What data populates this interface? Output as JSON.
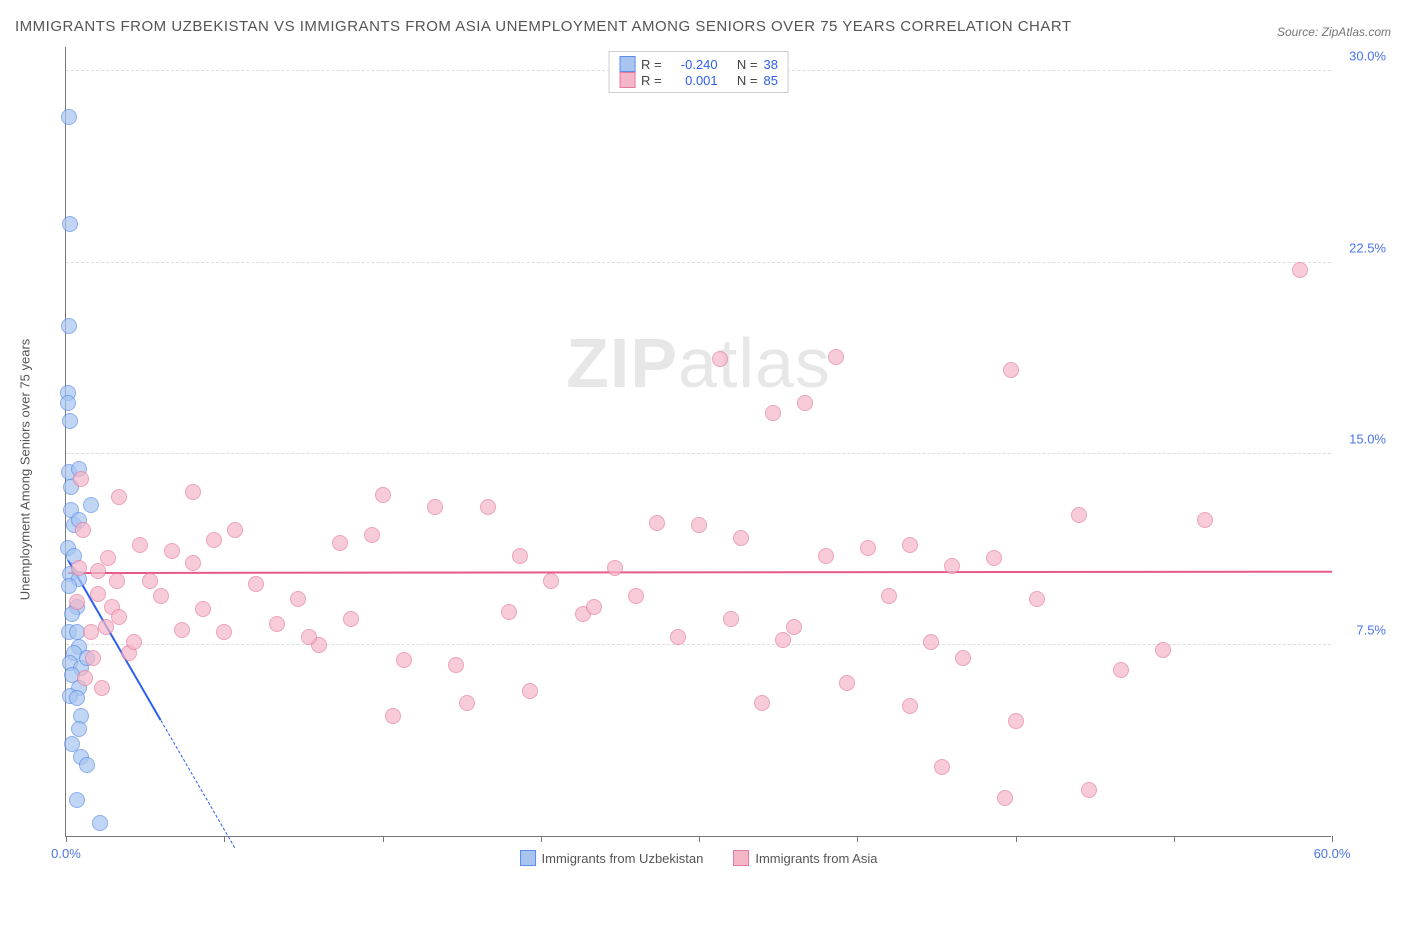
{
  "title": "IMMIGRANTS FROM UZBEKISTAN VS IMMIGRANTS FROM ASIA UNEMPLOYMENT AMONG SENIORS OVER 75 YEARS CORRELATION CHART",
  "source_label": "Source:",
  "source_value": "ZipAtlas.com",
  "ylabel": "Unemployment Among Seniors over 75 years",
  "watermark_bold": "ZIP",
  "watermark_light": "atlas",
  "chart": {
    "type": "scatter",
    "xlim": [
      0,
      60
    ],
    "ylim": [
      0,
      31
    ],
    "xtick_positions": [
      0,
      7.5,
      15,
      22.5,
      30,
      37.5,
      45,
      52.5,
      60
    ],
    "xtick_labels": {
      "0": "0.0%",
      "60": "60.0%"
    },
    "ytick_positions": [
      7.5,
      15,
      22.5,
      30
    ],
    "ytick_labels": {
      "7.5": "7.5%",
      "15": "15.0%",
      "22.5": "22.5%",
      "30": "30.0%"
    },
    "grid_color": "#dddddd",
    "axis_color": "#777777",
    "background_color": "#ffffff",
    "series": [
      {
        "name": "Immigrants from Uzbekistan",
        "key": "uzbekistan",
        "fill": "#a8c5f0",
        "fill_opacity": 0.35,
        "stroke": "#5b8de8",
        "trend_color": "#2b5ff0",
        "trend_start": [
          0.1,
          10.8
        ],
        "trend_end_solid": [
          4.5,
          4.5
        ],
        "trend_end_dash": [
          8.0,
          -0.5
        ],
        "R": "-0.240",
        "N": "38",
        "radius": 7,
        "points": [
          [
            0.15,
            28.2
          ],
          [
            0.2,
            24.0
          ],
          [
            0.15,
            20.0
          ],
          [
            0.1,
            17.4
          ],
          [
            0.1,
            17.0
          ],
          [
            0.2,
            16.3
          ],
          [
            0.12,
            14.3
          ],
          [
            0.6,
            14.4
          ],
          [
            0.25,
            12.8
          ],
          [
            1.2,
            13.0
          ],
          [
            0.4,
            12.2
          ],
          [
            0.6,
            12.4
          ],
          [
            0.1,
            11.3
          ],
          [
            0.4,
            11.0
          ],
          [
            0.2,
            10.3
          ],
          [
            0.6,
            10.1
          ],
          [
            0.15,
            9.8
          ],
          [
            0.5,
            9.0
          ],
          [
            0.3,
            8.7
          ],
          [
            0.15,
            8.0
          ],
          [
            0.5,
            8.0
          ],
          [
            0.6,
            7.4
          ],
          [
            0.4,
            7.2
          ],
          [
            0.2,
            6.8
          ],
          [
            0.7,
            6.6
          ],
          [
            0.3,
            6.3
          ],
          [
            0.6,
            5.8
          ],
          [
            0.2,
            5.5
          ],
          [
            0.5,
            5.4
          ],
          [
            0.7,
            4.7
          ],
          [
            0.6,
            4.2
          ],
          [
            0.3,
            3.6
          ],
          [
            0.7,
            3.1
          ],
          [
            1.0,
            2.8
          ],
          [
            0.5,
            1.4
          ],
          [
            1.6,
            0.5
          ],
          [
            0.25,
            13.7
          ],
          [
            1.0,
            7.0
          ]
        ]
      },
      {
        "name": "Immigrants from Asia",
        "key": "asia",
        "fill": "#f5b7c8",
        "fill_opacity": 0.35,
        "stroke": "#e77aa0",
        "trend_color": "#e55a8a",
        "trend_start": [
          0.1,
          10.3
        ],
        "trend_end_solid": [
          60,
          10.35
        ],
        "R": "0.001",
        "N": "85",
        "radius": 7,
        "points": [
          [
            58.5,
            22.2
          ],
          [
            31,
            18.7
          ],
          [
            36.5,
            18.8
          ],
          [
            44.8,
            18.3
          ],
          [
            35,
            17.0
          ],
          [
            33.5,
            16.6
          ],
          [
            6,
            13.5
          ],
          [
            2.5,
            13.3
          ],
          [
            15,
            13.4
          ],
          [
            17.5,
            12.9
          ],
          [
            20,
            12.9
          ],
          [
            48,
            12.6
          ],
          [
            54,
            12.4
          ],
          [
            28,
            12.3
          ],
          [
            30,
            12.2
          ],
          [
            8,
            12.0
          ],
          [
            3.5,
            11.4
          ],
          [
            32,
            11.7
          ],
          [
            13,
            11.5
          ],
          [
            40,
            11.4
          ],
          [
            36,
            11.0
          ],
          [
            44,
            10.9
          ],
          [
            2,
            10.9
          ],
          [
            6,
            10.7
          ],
          [
            26,
            10.5
          ],
          [
            23,
            10.0
          ],
          [
            4,
            10.0
          ],
          [
            9,
            9.9
          ],
          [
            1.5,
            9.5
          ],
          [
            4.5,
            9.4
          ],
          [
            11,
            9.3
          ],
          [
            27,
            9.4
          ],
          [
            39,
            9.4
          ],
          [
            46,
            9.3
          ],
          [
            2.2,
            9.0
          ],
          [
            6.5,
            8.9
          ],
          [
            21,
            8.8
          ],
          [
            24.5,
            8.7
          ],
          [
            13.5,
            8.5
          ],
          [
            10,
            8.3
          ],
          [
            5.5,
            8.1
          ],
          [
            7.5,
            8.0
          ],
          [
            1.2,
            8.0
          ],
          [
            29,
            7.8
          ],
          [
            34,
            7.7
          ],
          [
            41,
            7.6
          ],
          [
            52,
            7.3
          ],
          [
            12,
            7.5
          ],
          [
            3,
            7.2
          ],
          [
            42.5,
            7.0
          ],
          [
            16,
            6.9
          ],
          [
            18.5,
            6.7
          ],
          [
            50,
            6.5
          ],
          [
            37,
            6.0
          ],
          [
            22,
            5.7
          ],
          [
            33,
            5.2
          ],
          [
            19,
            5.2
          ],
          [
            40,
            5.1
          ],
          [
            45,
            4.5
          ],
          [
            15.5,
            4.7
          ],
          [
            41.5,
            2.7
          ],
          [
            44.5,
            1.5
          ],
          [
            48.5,
            1.8
          ],
          [
            0.8,
            12.0
          ],
          [
            1.5,
            10.4
          ],
          [
            2.4,
            10.0
          ],
          [
            2.5,
            8.6
          ],
          [
            1.9,
            8.2
          ],
          [
            3.2,
            7.6
          ],
          [
            1.3,
            7.0
          ],
          [
            0.9,
            6.2
          ],
          [
            1.7,
            5.8
          ],
          [
            34.5,
            8.2
          ],
          [
            0.7,
            14.0
          ],
          [
            14.5,
            11.8
          ],
          [
            25,
            9.0
          ],
          [
            11.5,
            7.8
          ],
          [
            5,
            11.2
          ],
          [
            38,
            11.3
          ],
          [
            42,
            10.6
          ],
          [
            21.5,
            11.0
          ],
          [
            7,
            11.6
          ],
          [
            31.5,
            8.5
          ],
          [
            0.5,
            9.2
          ],
          [
            0.6,
            10.5
          ]
        ]
      }
    ]
  },
  "legend_top": {
    "rows": [
      {
        "swatch_fill": "#a8c5f0",
        "swatch_stroke": "#5b8de8",
        "R_label": "R =",
        "R": "-0.240",
        "N_label": "N =",
        "N": "38"
      },
      {
        "swatch_fill": "#f5b7c8",
        "swatch_stroke": "#e77aa0",
        "R_label": "R =",
        "R": "0.001",
        "N_label": "N =",
        "N": "85"
      }
    ]
  },
  "legend_bottom": [
    {
      "swatch_fill": "#a8c5f0",
      "swatch_stroke": "#5b8de8",
      "label": "Immigrants from Uzbekistan"
    },
    {
      "swatch_fill": "#f5b7c8",
      "swatch_stroke": "#e77aa0",
      "label": "Immigrants from Asia"
    }
  ]
}
